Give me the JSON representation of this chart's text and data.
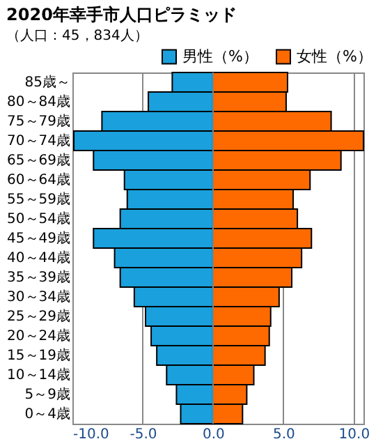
{
  "chart_data": {
    "type": "bar",
    "orientation": "horizontal",
    "stacked": true,
    "title": "2020年幸手市人口ピラミッド",
    "subtitle": "（人口：45，834人）",
    "categories": [
      "85歳～",
      "80～84歳",
      "75～79歳",
      "70～74歳",
      "65～69歳",
      "60～64歳",
      "55～59歳",
      "50～54歳",
      "45～49歳",
      "40～44歳",
      "35～39歳",
      "30～34歳",
      "25～29歳",
      "20～24歳",
      "15～19歳",
      "10～14歳",
      "5～9歳",
      "0～4歳"
    ],
    "series": [
      {
        "name": "男性（%）",
        "color": "#1aa0dc",
        "values": [
          -2.9,
          -4.6,
          -7.9,
          -9.9,
          -8.5,
          -6.3,
          -6.1,
          -6.6,
          -8.5,
          -7.0,
          -6.6,
          -5.6,
          -4.8,
          -4.4,
          -4.0,
          -3.3,
          -2.6,
          -2.3
        ]
      },
      {
        "name": "女性（%）",
        "color": "#ff6a00",
        "values": [
          5.3,
          5.2,
          8.4,
          10.7,
          9.1,
          6.9,
          5.7,
          6.0,
          7.0,
          6.3,
          5.6,
          4.7,
          4.1,
          4.0,
          3.7,
          2.9,
          2.4,
          2.1
        ]
      }
    ],
    "xlim": [
      -10,
      10.7
    ],
    "xticks": [
      {
        "value": -10,
        "label": "-10.0"
      },
      {
        "value": -5,
        "label": "-5.0"
      },
      {
        "value": 0,
        "label": "0.0"
      },
      {
        "value": 5,
        "label": "5.0"
      },
      {
        "value": 10,
        "label": "10.0"
      }
    ],
    "grid": "x",
    "legend": "top right"
  }
}
